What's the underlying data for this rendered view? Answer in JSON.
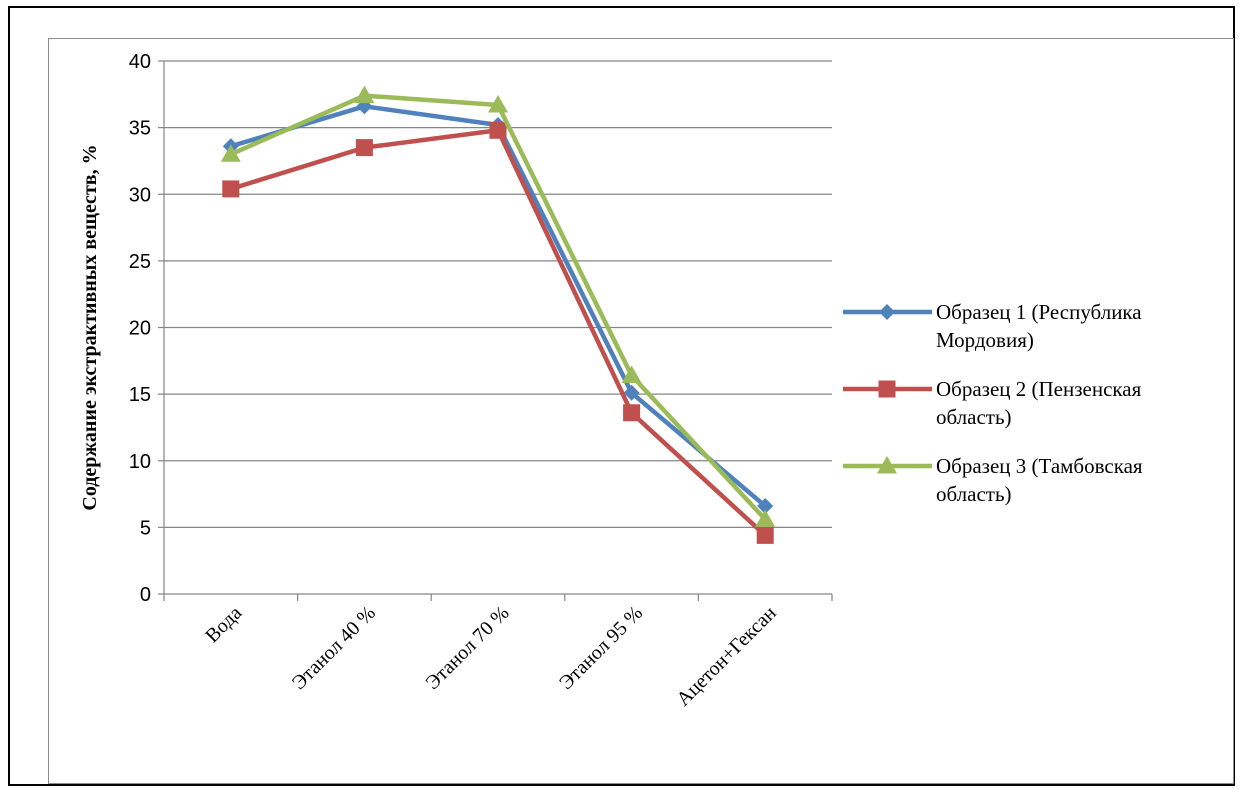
{
  "chart_data": {
    "type": "line",
    "categories": [
      "Вода",
      "Этанол 40 %",
      "Этанол 70 %",
      "Этанол 95 %",
      "Ацетон+Гексан"
    ],
    "series": [
      {
        "name": "Образец 1 (Республика Мордовия)",
        "name_lines": [
          "Образец 1 (Республика",
          "Мордовия)"
        ],
        "values": [
          33.6,
          36.6,
          35.2,
          15.1,
          6.6
        ],
        "color": "#4F81BD",
        "marker": "diamond"
      },
      {
        "name": "Образец 2 (Пензенская область)",
        "name_lines": [
          "Образец 2 (Пензенская",
          "область)"
        ],
        "values": [
          30.4,
          33.5,
          34.8,
          13.6,
          4.4
        ],
        "color": "#C0504D",
        "marker": "square"
      },
      {
        "name": "Образец 3 (Тамбовская область)",
        "name_lines": [
          "Образец 3 (Тамбовская",
          "область)"
        ],
        "values": [
          33.0,
          37.4,
          36.7,
          16.4,
          5.6
        ],
        "color": "#9BBB59",
        "marker": "triangle"
      }
    ],
    "ylabel": "Содержание экстрактивных веществ, %",
    "xlabel": "",
    "ylim": [
      0,
      40
    ],
    "yticks": [
      0,
      5,
      10,
      15,
      20,
      25,
      30,
      35,
      40
    ],
    "grid": true,
    "legend": "right"
  }
}
